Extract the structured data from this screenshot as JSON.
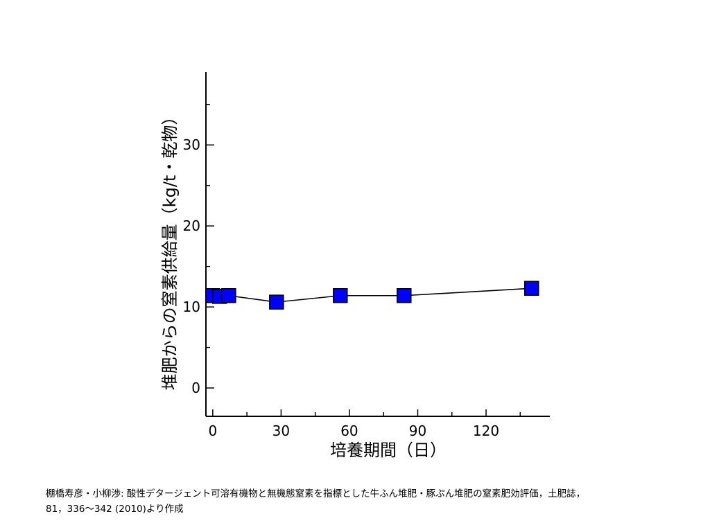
{
  "chart_data": {
    "type": "line",
    "title": "",
    "xlabel": "培養期間（日）",
    "ylabel": "堆肥からの窒素供給量（kg/t・乾物）",
    "xlim": [
      -3,
      148
    ],
    "ylim": [
      -3.5,
      39
    ],
    "x_ticks": [
      0,
      30,
      60,
      90,
      120
    ],
    "x_tick_labels": [
      "0",
      "30",
      "60",
      "90",
      "120"
    ],
    "y_ticks": [
      0,
      10,
      20,
      30
    ],
    "y_tick_labels": [
      "0",
      "10",
      "20",
      "30"
    ],
    "x_minor_step": 15,
    "y_minor_step": 5,
    "grid": false,
    "legend": "none",
    "series": [
      {
        "marker": "square",
        "color": "#0000ff",
        "x": [
          0,
          3,
          7,
          28,
          56,
          84,
          140
        ],
        "y": [
          11.4,
          11.3,
          11.4,
          10.6,
          11.4,
          11.4,
          12.3
        ]
      }
    ]
  },
  "citation": {
    "line1": "棚橋寿彦・小柳渉: 酸性デタージェント可溶有機物と無機態窒素を指標とした牛ふん堆肥・豚ぷん堆肥の窒素肥効評価，土肥誌，",
    "line2": "81，336～342 (2010)より作成"
  }
}
